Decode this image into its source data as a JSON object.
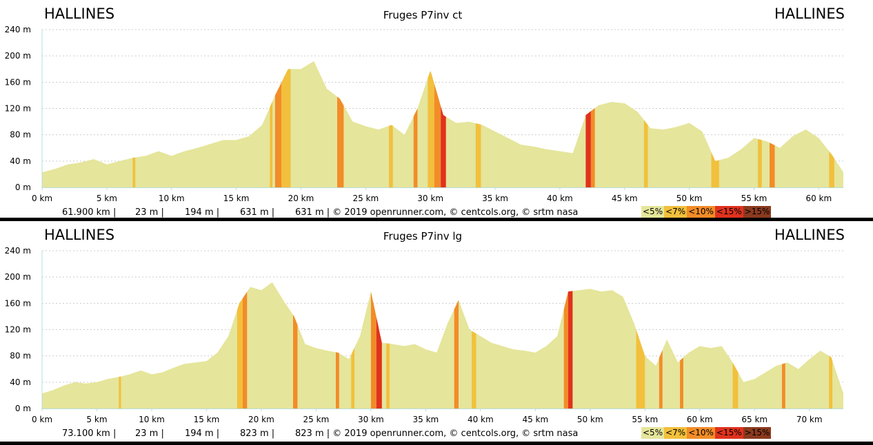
{
  "chart_data": [
    {
      "type": "area",
      "title": "Fruges P7inv ct",
      "start_label": "HALLINES",
      "end_label": "HALLINES",
      "ylim": [
        0,
        240
      ],
      "y_ticks": [
        "0 m",
        "40 m",
        "80 m",
        "120 m",
        "160 m",
        "200 m",
        "240 m"
      ],
      "y_tick_values": [
        0,
        40,
        80,
        120,
        160,
        200,
        240
      ],
      "xlim": [
        0,
        61.9
      ],
      "x_ticks": [
        "0 km",
        "5 km",
        "10 km",
        "15 km",
        "20 km",
        "25 km",
        "30 km",
        "35 km",
        "40 km",
        "45 km",
        "50 km",
        "55 km",
        "60 km"
      ],
      "x_tick_values": [
        0,
        5,
        10,
        15,
        20,
        25,
        30,
        35,
        40,
        45,
        50,
        55,
        60
      ],
      "grid": true,
      "stats": [
        "61.900 km |",
        "23 m |",
        "194 m |",
        "631 m |",
        "631 m | © 2019 openrunner.com, © centcols.org, © srtm nasa"
      ],
      "series": [
        {
          "x": [
            0,
            1,
            2,
            3,
            4,
            5,
            6,
            7,
            8,
            9,
            10,
            11,
            12,
            13,
            14,
            15,
            16,
            17,
            18,
            19,
            20,
            21,
            22,
            23,
            24,
            25,
            26,
            27,
            28,
            29,
            30,
            31,
            32,
            33,
            34,
            35,
            36,
            37,
            38,
            39,
            40,
            41,
            42,
            43,
            44,
            45,
            46,
            47,
            48,
            49,
            50,
            51,
            52,
            53,
            54,
            55,
            56,
            57,
            58,
            59,
            60,
            61,
            61.9
          ],
          "y": [
            23,
            28,
            35,
            38,
            43,
            35,
            40,
            45,
            48,
            55,
            48,
            55,
            60,
            66,
            72,
            72,
            78,
            95,
            140,
            180,
            180,
            192,
            150,
            135,
            100,
            93,
            88,
            95,
            80,
            120,
            178,
            110,
            98,
            100,
            95,
            85,
            75,
            65,
            62,
            58,
            55,
            52,
            110,
            125,
            130,
            128,
            115,
            90,
            88,
            92,
            98,
            85,
            40,
            45,
            58,
            75,
            70,
            60,
            78,
            88,
            75,
            50,
            23
          ]
        }
      ],
      "steep_segments": [
        {
          "x": [
            7.0,
            7.2
          ],
          "class": "<7%"
        },
        {
          "x": [
            17.6,
            17.8
          ],
          "class": "<7%"
        },
        {
          "x": [
            18.0,
            18.5
          ],
          "class": "<10%"
        },
        {
          "x": [
            18.5,
            19.2
          ],
          "class": "<7%"
        },
        {
          "x": [
            22.8,
            23.3
          ],
          "class": "<10%"
        },
        {
          "x": [
            26.8,
            27.1
          ],
          "class": "<7%"
        },
        {
          "x": [
            28.7,
            29.0
          ],
          "class": "<10%"
        },
        {
          "x": [
            29.8,
            30.3
          ],
          "class": "<7%"
        },
        {
          "x": [
            30.3,
            30.8
          ],
          "class": "<10%"
        },
        {
          "x": [
            30.8,
            31.2
          ],
          "class": "<15%"
        },
        {
          "x": [
            33.5,
            33.9
          ],
          "class": "<7%"
        },
        {
          "x": [
            42.0,
            42.4
          ],
          "class": "<15%"
        },
        {
          "x": [
            42.4,
            42.7
          ],
          "class": "<10%"
        },
        {
          "x": [
            46.5,
            46.8
          ],
          "class": "<7%"
        },
        {
          "x": [
            51.7,
            52.3
          ],
          "class": "<7%"
        },
        {
          "x": [
            55.3,
            55.6
          ],
          "class": "<7%"
        },
        {
          "x": [
            56.2,
            56.6
          ],
          "class": "<10%"
        },
        {
          "x": [
            60.8,
            61.2
          ],
          "class": "<7%"
        }
      ]
    },
    {
      "type": "area",
      "title": "Fruges P7inv lg",
      "start_label": "HALLINES",
      "end_label": "HALLINES",
      "ylim": [
        0,
        240
      ],
      "y_ticks": [
        "0 m",
        "40 m",
        "80 m",
        "120 m",
        "160 m",
        "200 m",
        "240 m"
      ],
      "y_tick_values": [
        0,
        40,
        80,
        120,
        160,
        200,
        240
      ],
      "xlim": [
        0,
        73.1
      ],
      "x_ticks": [
        "0 km",
        "5 km",
        "10 km",
        "15 km",
        "20 km",
        "25 km",
        "30 km",
        "35 km",
        "40 km",
        "45 km",
        "50 km",
        "55 km",
        "60 km",
        "65 km",
        "70 km"
      ],
      "x_tick_values": [
        0,
        5,
        10,
        15,
        20,
        25,
        30,
        35,
        40,
        45,
        50,
        55,
        60,
        65,
        70
      ],
      "grid": true,
      "stats": [
        "73.100 km |",
        "23 m |",
        "194 m |",
        "823 m |",
        "823 m | © 2019 openrunner.com, © centcols.org, © srtm nasa"
      ],
      "series": [
        {
          "x": [
            0,
            1,
            2,
            3,
            4,
            5,
            6,
            7,
            8,
            9,
            10,
            11,
            12,
            13,
            14,
            15,
            16,
            17,
            18,
            19,
            20,
            21,
            22,
            23,
            24,
            25,
            26,
            27,
            28,
            29,
            30,
            31,
            32,
            33,
            34,
            35,
            36,
            37,
            38,
            39,
            40,
            41,
            42,
            43,
            44,
            45,
            46,
            47,
            48,
            49,
            50,
            51,
            52,
            53,
            54,
            55,
            56,
            57,
            58,
            59,
            60,
            61,
            62,
            63,
            64,
            65,
            66,
            67,
            68,
            69,
            70,
            71,
            72,
            73.1
          ],
          "y": [
            23,
            28,
            35,
            40,
            38,
            40,
            45,
            48,
            52,
            58,
            52,
            55,
            62,
            68,
            70,
            72,
            85,
            110,
            160,
            185,
            180,
            192,
            165,
            140,
            98,
            92,
            88,
            85,
            75,
            110,
            178,
            100,
            98,
            95,
            98,
            90,
            85,
            130,
            165,
            120,
            110,
            100,
            95,
            90,
            88,
            85,
            95,
            110,
            178,
            180,
            182,
            178,
            180,
            170,
            130,
            80,
            65,
            105,
            70,
            85,
            95,
            92,
            95,
            70,
            40,
            45,
            55,
            65,
            70,
            60,
            75,
            88,
            78,
            23
          ]
        }
      ],
      "steep_segments": [
        {
          "x": [
            7.0,
            7.2
          ],
          "class": "<7%"
        },
        {
          "x": [
            17.8,
            18.3
          ],
          "class": "<7%"
        },
        {
          "x": [
            18.3,
            18.7
          ],
          "class": "<10%"
        },
        {
          "x": [
            22.9,
            23.3
          ],
          "class": "<10%"
        },
        {
          "x": [
            26.8,
            27.1
          ],
          "class": "<10%"
        },
        {
          "x": [
            28.2,
            28.5
          ],
          "class": "<7%"
        },
        {
          "x": [
            30.0,
            30.5
          ],
          "class": "<10%"
        },
        {
          "x": [
            30.5,
            31.0
          ],
          "class": "<15%"
        },
        {
          "x": [
            31.4,
            31.7
          ],
          "class": "<7%"
        },
        {
          "x": [
            37.6,
            38.0
          ],
          "class": "<10%"
        },
        {
          "x": [
            39.2,
            39.6
          ],
          "class": "<7%"
        },
        {
          "x": [
            47.6,
            48.0
          ],
          "class": "<10%"
        },
        {
          "x": [
            48.0,
            48.4
          ],
          "class": "<15%"
        },
        {
          "x": [
            54.2,
            55.0
          ],
          "class": "<7%"
        },
        {
          "x": [
            56.3,
            56.6
          ],
          "class": "<10%"
        },
        {
          "x": [
            58.2,
            58.5
          ],
          "class": "<10%"
        },
        {
          "x": [
            63.0,
            63.5
          ],
          "class": "<7%"
        },
        {
          "x": [
            67.5,
            67.8
          ],
          "class": "<10%"
        },
        {
          "x": [
            71.8,
            72.1
          ],
          "class": "<7%"
        }
      ]
    }
  ],
  "legend": [
    {
      "label": "<5%",
      "color": "#e5e59b"
    },
    {
      "label": "<7%",
      "color": "#f2c03c"
    },
    {
      "label": "<10%",
      "color": "#f28c28"
    },
    {
      "label": "<15%",
      "color": "#e0321e"
    },
    {
      "label": ">15%",
      "color": "#8b3a1e"
    }
  ],
  "colors": {
    "fill": "#e5e59b",
    "axis": "#b9dcdc",
    "grid": "#cccccc",
    "separator": "#000000"
  }
}
